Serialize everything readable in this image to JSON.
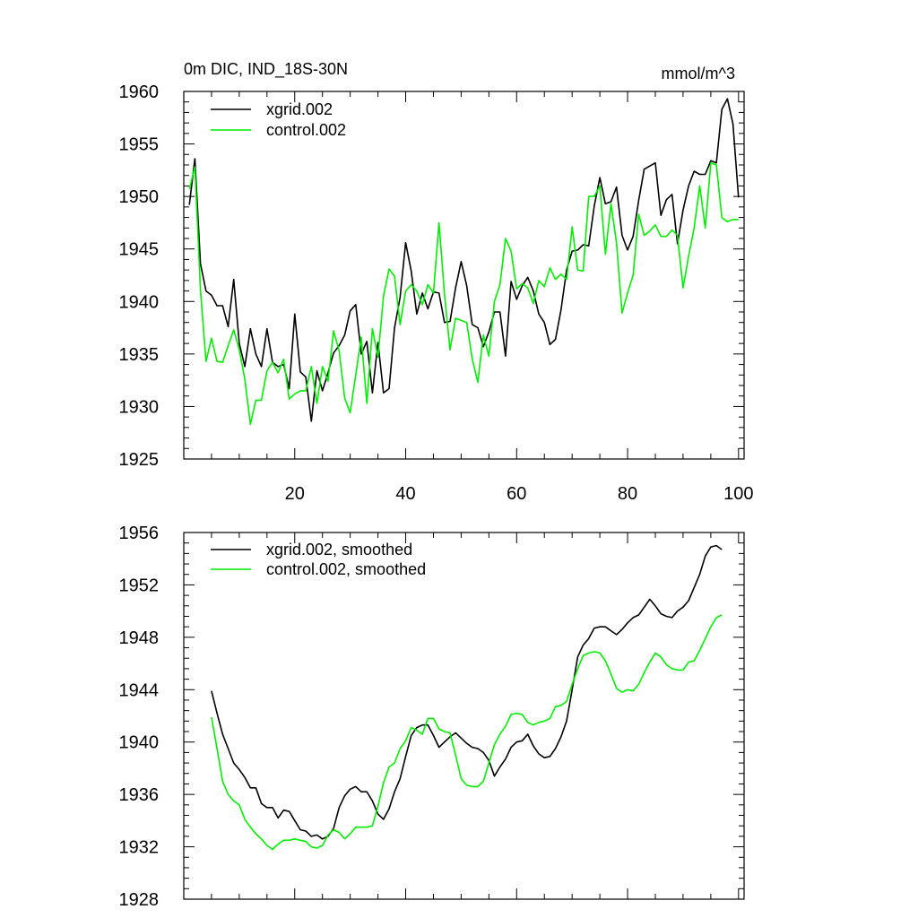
{
  "chart_data": [
    {
      "type": "line",
      "title": "0m DIC, IND_18S-30N",
      "units": "mmol/m^3",
      "xlim": [
        0,
        101
      ],
      "ylim": [
        1925,
        1960
      ],
      "xticks": [
        20,
        40,
        60,
        80,
        100
      ],
      "yticks": [
        1925,
        1930,
        1935,
        1940,
        1945,
        1950,
        1955,
        1960
      ],
      "legend_position": "top-left",
      "series": [
        {
          "name": "xgrid.002",
          "color": "#000000",
          "x": [
            1,
            2,
            3,
            4,
            5,
            6,
            7,
            8,
            9,
            10,
            11,
            12,
            13,
            14,
            15,
            16,
            17,
            18,
            19,
            20,
            21,
            22,
            23,
            24,
            25,
            26,
            27,
            28,
            29,
            30,
            31,
            32,
            33,
            34,
            35,
            36,
            37,
            38,
            39,
            40,
            41,
            42,
            43,
            44,
            45,
            46,
            47,
            48,
            49,
            50,
            51,
            52,
            53,
            54,
            55,
            56,
            57,
            58,
            59,
            60,
            61,
            62,
            63,
            64,
            65,
            66,
            67,
            68,
            69,
            70,
            71,
            72,
            73,
            74,
            75,
            76,
            77,
            78,
            79,
            80,
            81,
            82,
            83,
            84,
            85,
            86,
            87,
            88,
            89,
            90,
            91,
            92,
            93,
            94,
            95,
            96,
            97,
            98,
            99,
            100
          ],
          "values": [
            1949.2,
            1953.6,
            1943.6,
            1941.0,
            1940.6,
            1939.6,
            1939.6,
            1937.6,
            1942.1,
            1936.0,
            1933.8,
            1937.4,
            1935.0,
            1933.8,
            1937.4,
            1934.2,
            1933.8,
            1934.0,
            1931.7,
            1938.8,
            1933.3,
            1932.8,
            1928.6,
            1933.4,
            1931.5,
            1933.2,
            1935.1,
            1935.8,
            1936.8,
            1939.1,
            1939.7,
            1935.0,
            1936.2,
            1931.3,
            1936.1,
            1931.3,
            1931.7,
            1937.5,
            1940.4,
            1945.6,
            1942.9,
            1938.8,
            1940.8,
            1939.3,
            1940.9,
            1940.8,
            1938.0,
            1938.1,
            1941.3,
            1943.8,
            1941.5,
            1937.8,
            1937.5,
            1935.7,
            1937.1,
            1939.0,
            1939.0,
            1934.8,
            1941.9,
            1940.2,
            1941.5,
            1942.3,
            1941.0,
            1938.8,
            1938.0,
            1935.9,
            1936.4,
            1939.2,
            1943.0,
            1944.8,
            1944.9,
            1945.4,
            1945.3,
            1949.1,
            1951.8,
            1949.3,
            1949.5,
            1950.9,
            1946.3,
            1944.9,
            1946.2,
            1949.6,
            1952.6,
            1952.9,
            1953.2,
            1948.2,
            1949.7,
            1950.2,
            1945.5,
            1948.7,
            1951.0,
            1952.4,
            1952.1,
            1952.1,
            1953.4,
            1953.2,
            1958.3,
            1959.3,
            1956.9,
            1949.9
          ]
        },
        {
          "name": "control.002",
          "color": "#00ee00",
          "x": [
            1,
            2,
            3,
            4,
            5,
            6,
            7,
            8,
            9,
            10,
            11,
            12,
            13,
            14,
            15,
            16,
            17,
            18,
            19,
            20,
            21,
            22,
            23,
            24,
            25,
            26,
            27,
            28,
            29,
            30,
            31,
            32,
            33,
            34,
            35,
            36,
            37,
            38,
            39,
            40,
            41,
            42,
            43,
            44,
            45,
            46,
            47,
            48,
            49,
            50,
            51,
            52,
            53,
            54,
            55,
            56,
            57,
            58,
            59,
            60,
            61,
            62,
            63,
            64,
            65,
            66,
            67,
            68,
            69,
            70,
            71,
            72,
            73,
            74,
            75,
            76,
            77,
            78,
            79,
            80,
            81,
            82,
            83,
            84,
            85,
            86,
            87,
            88,
            89,
            90,
            91,
            92,
            93,
            94,
            95,
            96,
            97,
            98,
            99,
            100
          ],
          "values": [
            1950.7,
            1952.8,
            1941.1,
            1934.3,
            1936.5,
            1934.3,
            1934.2,
            1935.8,
            1937.3,
            1935.4,
            1932.6,
            1928.3,
            1930.6,
            1930.6,
            1933.4,
            1934.2,
            1933.2,
            1934.5,
            1930.7,
            1931.2,
            1931.5,
            1931.5,
            1933.8,
            1930.3,
            1933.8,
            1932.4,
            1937.2,
            1935.3,
            1930.8,
            1929.4,
            1933.0,
            1936.6,
            1930.3,
            1937.4,
            1934.7,
            1940.5,
            1943.1,
            1942.4,
            1937.8,
            1941.0,
            1941.6,
            1941.0,
            1939.7,
            1941.6,
            1940.8,
            1947.5,
            1940.7,
            1935.4,
            1938.4,
            1938.2,
            1938.0,
            1934.5,
            1932.3,
            1936.8,
            1934.8,
            1940.0,
            1941.6,
            1946.0,
            1944.8,
            1941.2,
            1941.7,
            1941.3,
            1939.8,
            1942.0,
            1941.4,
            1943.2,
            1942.1,
            1942.6,
            1942.1,
            1947.1,
            1943.0,
            1942.9,
            1950.0,
            1950.0,
            1951.0,
            1944.5,
            1949.3,
            1945.6,
            1938.9,
            1940.8,
            1942.5,
            1948.3,
            1946.3,
            1946.7,
            1947.3,
            1946.2,
            1946.2,
            1946.8,
            1946.3,
            1941.3,
            1944.3,
            1947.0,
            1951.0,
            1947.0,
            1953.2,
            1953.0,
            1948.0,
            1947.6,
            1947.8,
            1947.8
          ]
        }
      ]
    },
    {
      "type": "line",
      "title": "",
      "xlim": [
        0,
        101
      ],
      "ylim": [
        1928,
        1956
      ],
      "xticks": [
        20,
        40,
        60,
        80,
        100
      ],
      "yticks": [
        1928,
        1932,
        1936,
        1940,
        1944,
        1948,
        1952,
        1956
      ],
      "legend_position": "top-left",
      "series": [
        {
          "name": "xgrid.002, smoothed",
          "color": "#000000",
          "x": [
            5,
            6,
            7,
            8,
            9,
            10,
            11,
            12,
            13,
            14,
            15,
            16,
            17,
            18,
            19,
            20,
            21,
            22,
            23,
            24,
            25,
            26,
            27,
            28,
            29,
            30,
            31,
            32,
            33,
            34,
            35,
            36,
            37,
            38,
            39,
            40,
            41,
            42,
            43,
            44,
            45,
            46,
            47,
            48,
            49,
            50,
            51,
            52,
            53,
            54,
            55,
            56,
            57,
            58,
            59,
            60,
            61,
            62,
            63,
            64,
            65,
            66,
            67,
            68,
            69,
            70,
            71,
            72,
            73,
            74,
            75,
            76,
            77,
            78,
            79,
            80,
            81,
            82,
            83,
            84,
            85,
            86,
            87,
            88,
            89,
            90,
            91,
            92,
            93,
            94,
            95,
            96,
            97
          ],
          "values": [
            1943.9,
            1942.2,
            1940.6,
            1939.5,
            1938.4,
            1937.9,
            1937.3,
            1936.5,
            1936.5,
            1935.3,
            1935.0,
            1935.0,
            1934.2,
            1934.8,
            1934.7,
            1934.0,
            1933.3,
            1933.2,
            1932.8,
            1932.9,
            1932.6,
            1932.8,
            1933.4,
            1935.0,
            1935.9,
            1936.4,
            1936.6,
            1936.2,
            1936.2,
            1935.5,
            1934.5,
            1934.1,
            1934.9,
            1936.2,
            1937.2,
            1938.9,
            1940.5,
            1941.1,
            1941.3,
            1941.3,
            1940.5,
            1939.6,
            1940.0,
            1940.4,
            1940.7,
            1940.3,
            1939.9,
            1939.6,
            1939.5,
            1939.2,
            1938.6,
            1937.4,
            1938.1,
            1938.7,
            1939.6,
            1940.0,
            1940.1,
            1940.6,
            1939.7,
            1939.1,
            1938.8,
            1938.9,
            1939.5,
            1940.4,
            1941.6,
            1944.0,
            1946.5,
            1947.4,
            1947.9,
            1948.7,
            1948.8,
            1948.8,
            1948.5,
            1948.2,
            1948.6,
            1949.1,
            1949.5,
            1949.7,
            1950.3,
            1950.9,
            1950.4,
            1949.8,
            1949.6,
            1949.5,
            1950.0,
            1950.3,
            1950.8,
            1951.8,
            1952.8,
            1954.2,
            1954.9,
            1955.0,
            1954.7
          ]
        },
        {
          "name": "control.002, smoothed",
          "color": "#00ee00",
          "x": [
            5,
            6,
            7,
            8,
            9,
            10,
            11,
            12,
            13,
            14,
            15,
            16,
            17,
            18,
            19,
            20,
            21,
            22,
            23,
            24,
            25,
            26,
            27,
            28,
            29,
            30,
            31,
            32,
            33,
            34,
            35,
            36,
            37,
            38,
            39,
            40,
            41,
            42,
            43,
            44,
            45,
            46,
            47,
            48,
            49,
            50,
            51,
            52,
            53,
            54,
            55,
            56,
            57,
            58,
            59,
            60,
            61,
            62,
            63,
            64,
            65,
            66,
            67,
            68,
            69,
            70,
            71,
            72,
            73,
            74,
            75,
            76,
            77,
            78,
            79,
            80,
            81,
            82,
            83,
            84,
            85,
            86,
            87,
            88,
            89,
            90,
            91,
            92,
            93,
            94,
            95,
            96,
            97
          ],
          "values": [
            1941.9,
            1939.5,
            1937.0,
            1936.0,
            1935.5,
            1935.2,
            1934.1,
            1933.5,
            1933.0,
            1932.6,
            1932.1,
            1931.8,
            1932.2,
            1932.5,
            1932.5,
            1932.6,
            1932.5,
            1932.4,
            1932.0,
            1931.9,
            1932.1,
            1932.9,
            1933.3,
            1933.1,
            1932.6,
            1933.0,
            1933.5,
            1933.5,
            1933.5,
            1933.6,
            1935.1,
            1936.9,
            1938.1,
            1938.4,
            1939.5,
            1940.1,
            1941.1,
            1940.9,
            1940.6,
            1941.8,
            1941.8,
            1941.0,
            1940.8,
            1940.7,
            1939.0,
            1937.2,
            1936.7,
            1936.6,
            1936.6,
            1937.0,
            1938.4,
            1939.8,
            1940.6,
            1941.2,
            1942.1,
            1942.2,
            1942.1,
            1941.5,
            1941.3,
            1941.5,
            1941.6,
            1941.8,
            1942.7,
            1942.8,
            1943.1,
            1944.4,
            1945.6,
            1946.6,
            1946.8,
            1946.9,
            1946.8,
            1946.2,
            1945.2,
            1944.1,
            1943.8,
            1944.0,
            1943.9,
            1944.4,
            1945.3,
            1946.1,
            1946.8,
            1946.5,
            1945.9,
            1945.6,
            1945.5,
            1945.5,
            1946.1,
            1946.2,
            1947.0,
            1947.9,
            1948.8,
            1949.5,
            1949.7
          ]
        }
      ]
    }
  ]
}
